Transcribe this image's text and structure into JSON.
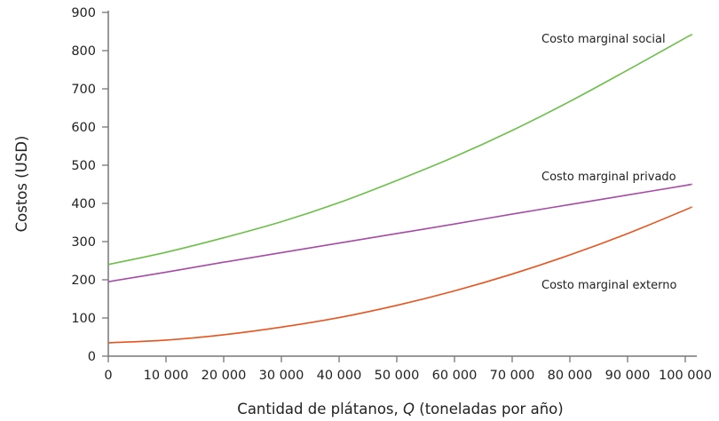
{
  "chart_data": {
    "type": "line",
    "title": "",
    "xlabel_prefix": "Cantidad de plátanos, ",
    "xlabel_var": "Q",
    "xlabel_suffix": " (toneladas por año)",
    "ylabel": "Costos (USD)",
    "xlim": [
      0,
      102000
    ],
    "ylim": [
      0,
      900
    ],
    "grid": false,
    "x_ticks": [
      0,
      10000,
      20000,
      30000,
      40000,
      50000,
      60000,
      70000,
      80000,
      90000,
      100000
    ],
    "x_tick_labels": [
      "0",
      "10 000",
      "20 000",
      "30 000",
      "40 000",
      "50 000",
      "60 000",
      "70 000",
      "80 000",
      "90 000",
      "100 000"
    ],
    "y_ticks": [
      0,
      100,
      200,
      300,
      400,
      500,
      600,
      700,
      800,
      900
    ],
    "y_tick_labels": [
      "0",
      "100",
      "200",
      "300",
      "400",
      "500",
      "600",
      "700",
      "800",
      "900"
    ],
    "x": [
      0,
      10000,
      20000,
      30000,
      40000,
      50000,
      60000,
      70000,
      80000,
      90000,
      100000,
      101000
    ],
    "series": [
      {
        "name": "Costo marginal social",
        "color": "#6cc04a",
        "values": [
          240,
          272,
          310,
          352,
          402,
          460,
          522,
          591,
          667,
          749,
          833,
          840
        ]
      },
      {
        "name": "Costo marginal privado",
        "color": "#a64ca6",
        "values": [
          195,
          220,
          246,
          271,
          296,
          321,
          346,
          372,
          397,
          422,
          447,
          450
        ]
      },
      {
        "name": "Costo marginal externo",
        "color": "#e8541e",
        "values": [
          35,
          42,
          56,
          76,
          101,
          133,
          171,
          215,
          265,
          321,
          383,
          390
        ]
      }
    ]
  }
}
